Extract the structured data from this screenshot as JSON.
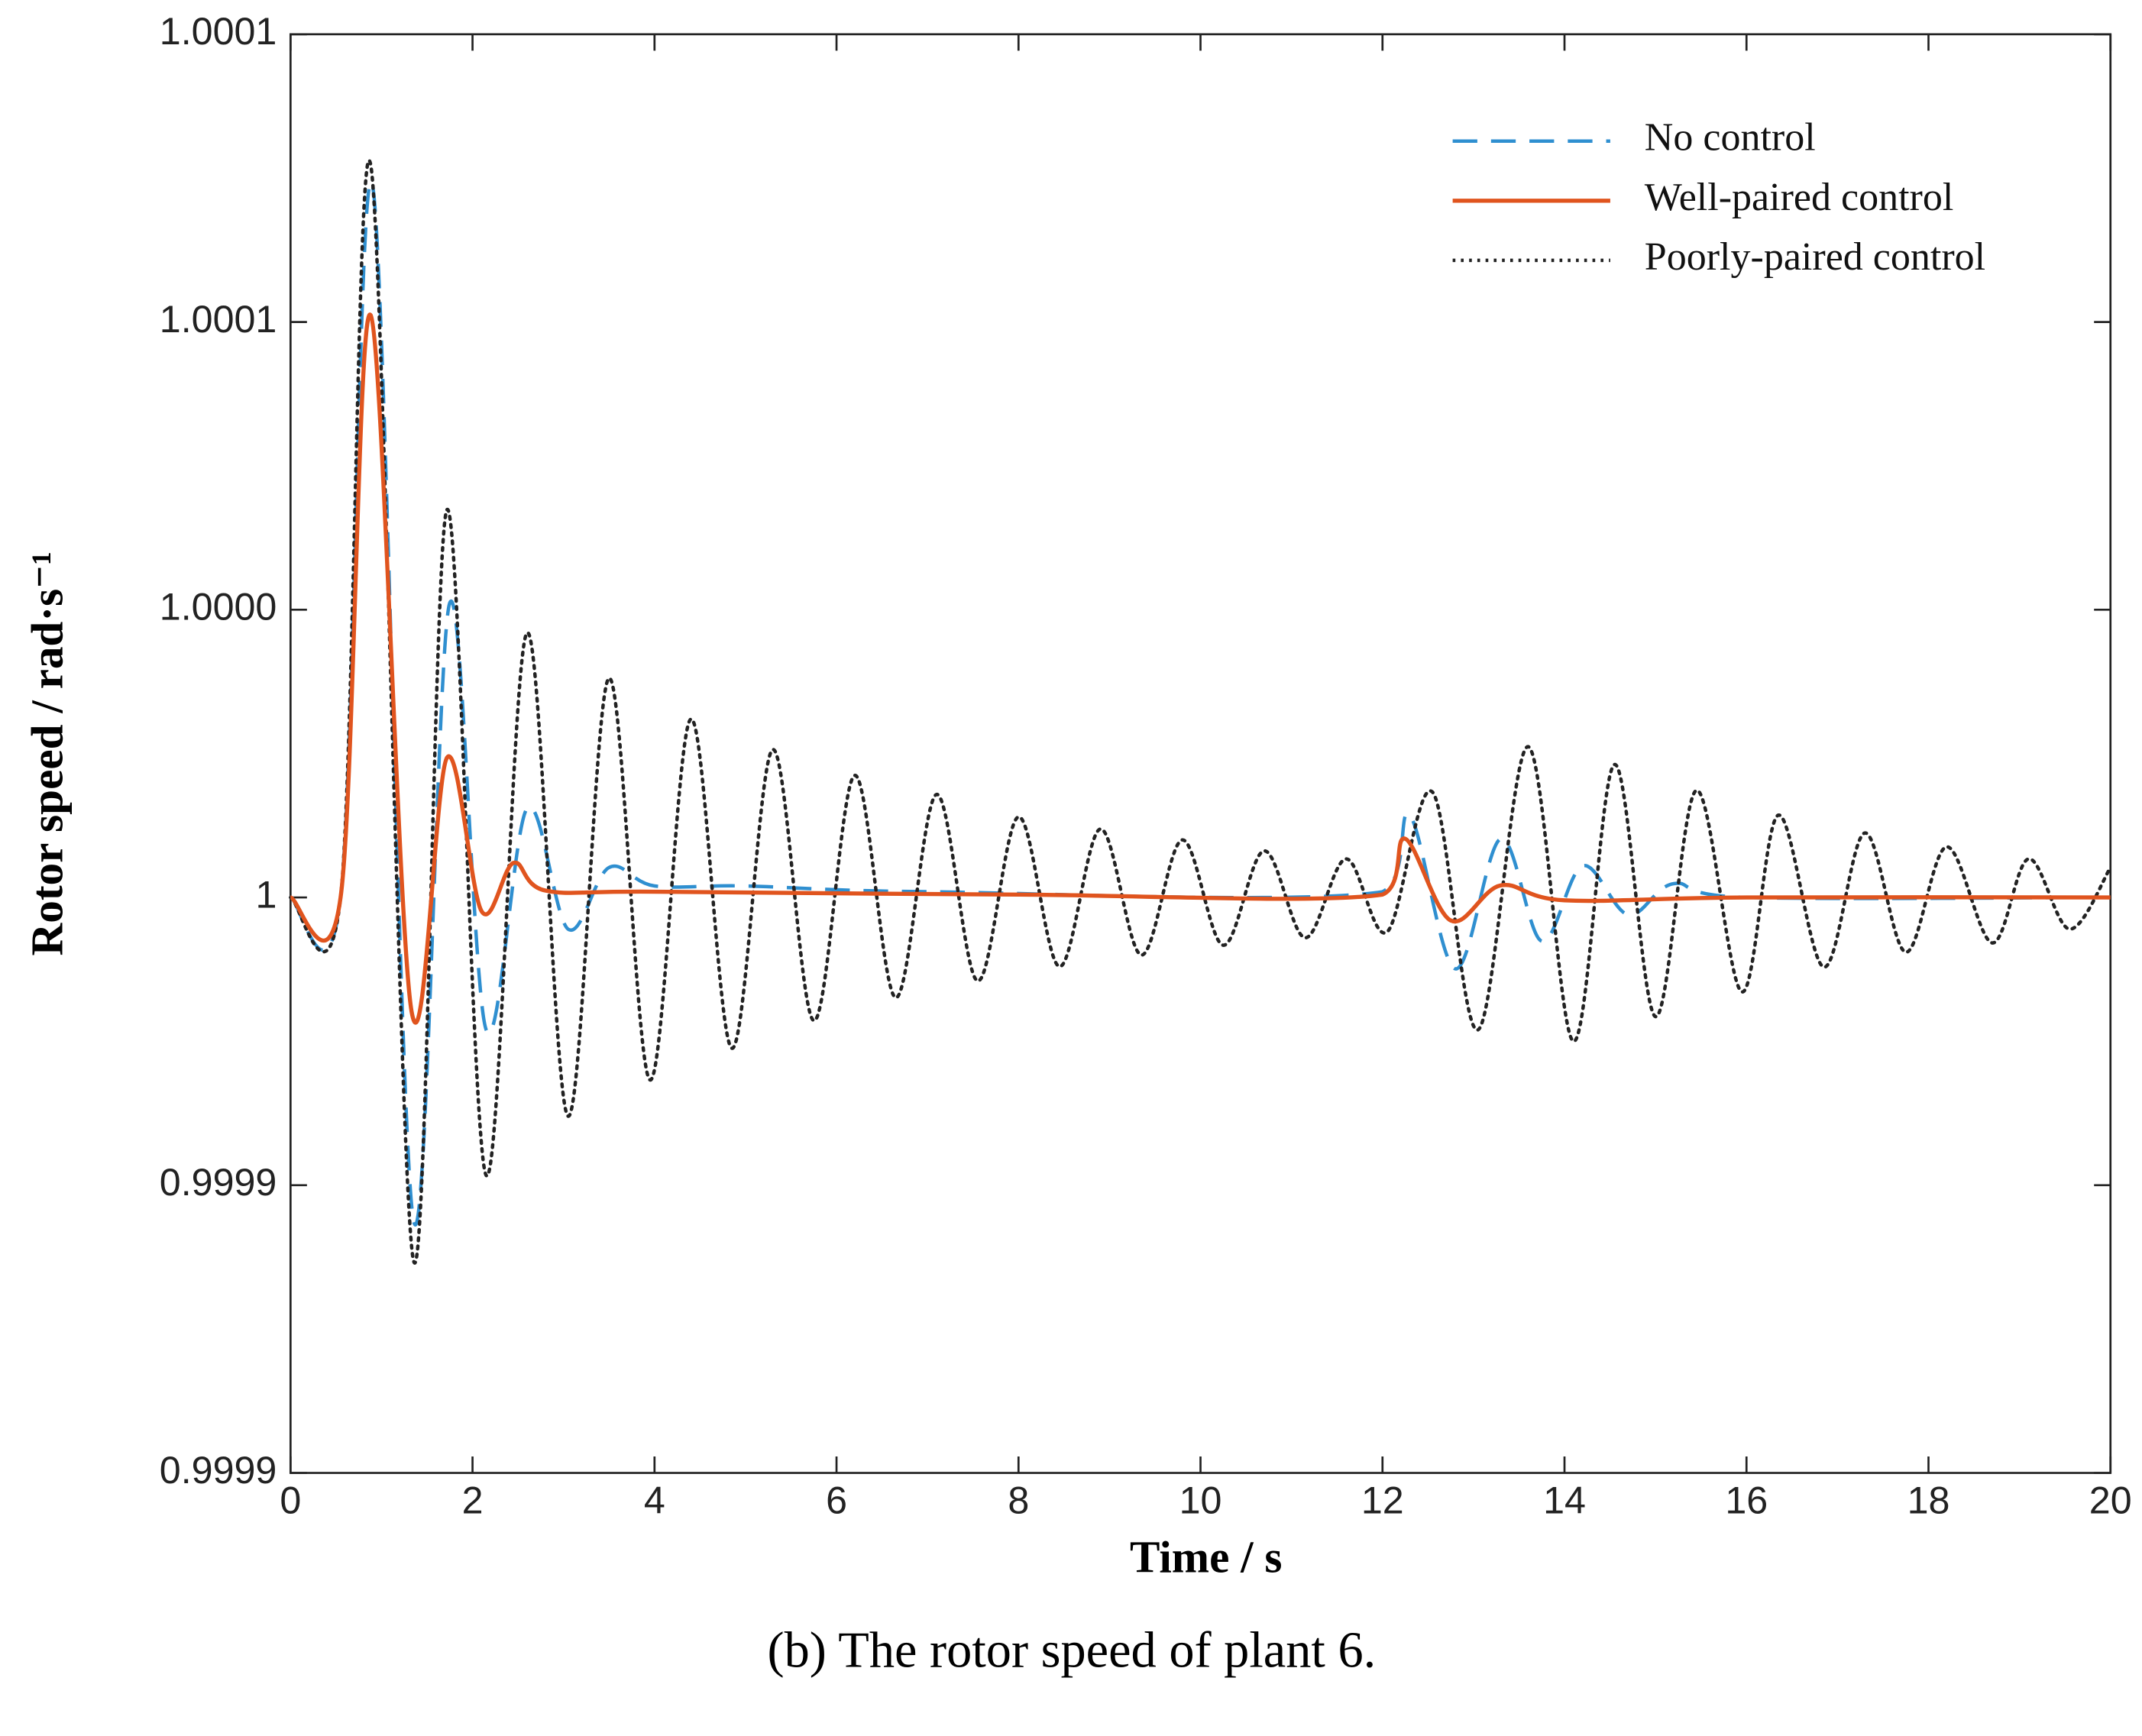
{
  "chart_data": {
    "type": "line",
    "caption": "(b) The rotor speed of plant 6.",
    "xlabel": "Time / s",
    "ylabel": "Rotor speed / rad·s⁻¹",
    "xlim": [
      0,
      20
    ],
    "xticks": [
      0,
      2,
      4,
      6,
      8,
      10,
      12,
      14,
      16,
      18,
      20
    ],
    "ylim": [
      0.9999,
      1.00015
    ],
    "yticks": [
      {
        "value": 0.9999,
        "label": "0.9999"
      },
      {
        "value": 0.99995,
        "label": "0.9999"
      },
      1,
      {
        "value": 1.00005,
        "label": "1.0000"
      },
      {
        "value": 1.0001,
        "label": "1.0001"
      },
      {
        "value": 1.00015,
        "label": "1.0001"
      }
    ],
    "legend": "upper right",
    "series": [
      {
        "name": "No control",
        "color": "#2f8fd0",
        "dash": "dashed",
        "x": [
          0,
          0.55,
          0.9,
          1.35,
          1.75,
          2.15,
          2.6,
          3.05,
          3.5,
          4.0,
          5.0,
          7.0,
          12.0,
          12.3,
          12.8,
          13.3,
          13.75,
          14.2,
          14.7,
          15.2,
          16.0,
          20.0
        ],
        "values": [
          1,
          1,
          1.0001238,
          0.999944,
          1.0000512,
          0.999977,
          1.0000155,
          0.9999945,
          1.0000052,
          1.000002,
          1.000002,
          1.000001,
          1.000001,
          1.0000143,
          0.9999876,
          1.0000102,
          0.9999924,
          1.0000055,
          0.999997,
          1.0000024,
          1,
          1
        ]
      },
      {
        "name": "Well-paired control",
        "color": "#e0541e",
        "dash": "solid",
        "x": [
          0,
          0.55,
          0.88,
          1.33,
          1.72,
          2.1,
          2.45,
          2.8,
          4.0,
          8.0,
          12.0,
          12.25,
          12.75,
          13.3,
          14.0,
          16.0,
          20.0
        ],
        "values": [
          1,
          1,
          1.0001012,
          0.9999802,
          1.0000243,
          0.9999976,
          1.000006,
          1.0000012,
          1.000001,
          1.0000005,
          1.0000005,
          1.0000102,
          0.999996,
          1.0000021,
          0.9999995,
          1,
          1
        ]
      },
      {
        "name": "Poorly-paired control",
        "color": "#222222",
        "dash": "dotted",
        "x": [
          0,
          0.55,
          0.88,
          1.35,
          1.72,
          2.15,
          2.6,
          3.05,
          3.5,
          3.95,
          4.4,
          4.85,
          5.3,
          5.75,
          6.2,
          6.65,
          7.1,
          7.55,
          8.0,
          8.45,
          8.9,
          9.35,
          9.8,
          10.25,
          10.7,
          11.15,
          11.6,
          12.05,
          12.55,
          13.05,
          13.6,
          14.1,
          14.55,
          15.0,
          15.45,
          15.95,
          16.35,
          16.85,
          17.3,
          17.75,
          18.2,
          18.7,
          19.1,
          19.55,
          20.0
        ],
        "values": [
          1,
          1,
          1.0001274,
          0.999937,
          1.0000674,
          0.9999517,
          1.000046,
          0.999962,
          1.0000381,
          0.9999683,
          1.000031,
          0.9999738,
          1.0000257,
          0.9999786,
          1.0000212,
          0.9999826,
          1.0000179,
          0.9999855,
          1.000014,
          0.999988,
          1.0000119,
          0.99999,
          1.00001,
          0.9999917,
          1.0000081,
          0.999993,
          1.0000067,
          0.999994,
          1.0000183,
          0.999977,
          1.0000262,
          0.999975,
          1.0000231,
          0.9999793,
          1.0000186,
          0.9999836,
          1.0000143,
          0.9999879,
          1.0000112,
          0.9999905,
          1.0000088,
          0.9999921,
          1.0000067,
          0.9999945,
          1.0000052
        ]
      }
    ]
  }
}
